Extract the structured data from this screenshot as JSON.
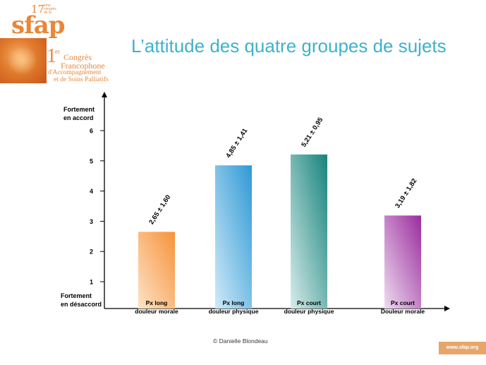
{
  "logo": {
    "number": "17",
    "number_caption": "ème congrès de la",
    "brand": "sfap",
    "congres_1": "1",
    "congres_sup": "er",
    "congres_line1": "Congrès",
    "congres_line2": "Francophone",
    "congres_line3": "d'Accompagnement",
    "congres_line4": "et de Soins Palliatifs"
  },
  "slide_title": "L’attitude des quatre groupes de sujets",
  "footer_credit": "© Danielle  Blondeau",
  "website": "www.sfap.org",
  "chart_data": {
    "type": "bar",
    "title": "",
    "categories": [
      [
        "Px long",
        "douleur morale"
      ],
      [
        "Px long",
        "douleur physique"
      ],
      [
        "Px court",
        "douleur physique"
      ],
      [
        "Px court",
        "Douleur morale"
      ]
    ],
    "values": [
      2.65,
      4.85,
      5.21,
      3.19
    ],
    "data_labels": [
      "2,65 ± 1,60",
      "4,85 ± 1,41",
      "5,21 ± 0,95",
      "3,19 ± 1,82"
    ],
    "bar_colors": [
      [
        "#fde3c6",
        "#f7923a"
      ],
      [
        "#cfeaf7",
        "#2f99d6"
      ],
      [
        "#d6ecea",
        "#16837c"
      ],
      [
        "#eddcf0",
        "#9b2c9e"
      ]
    ],
    "y_ticks": [
      "1",
      "2",
      "3",
      "4",
      "5",
      "6"
    ],
    "y_top_label": [
      "Fortement",
      "en accord"
    ],
    "y_bottom_label": [
      "Fortement",
      "en désaccord"
    ],
    "ylim": [
      0,
      7
    ],
    "grid": false,
    "legend": "none"
  }
}
